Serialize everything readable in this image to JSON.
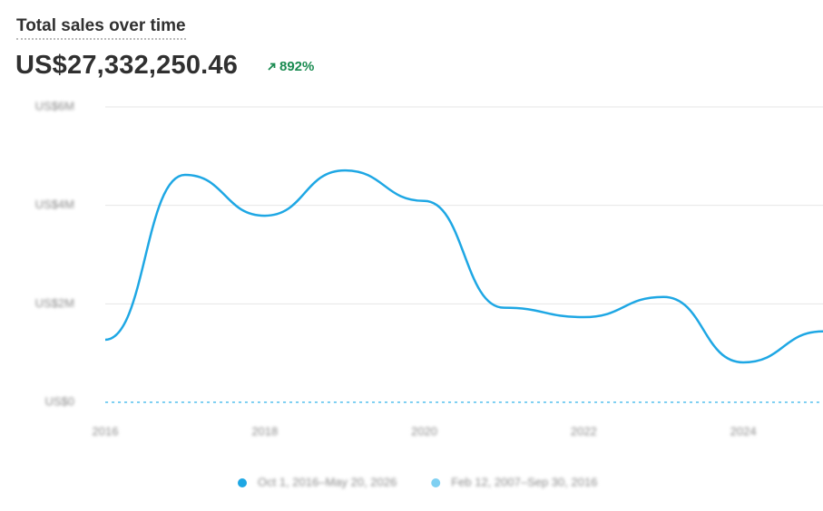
{
  "header": {
    "title": "Total sales over time",
    "total": "US$27,332,250.46",
    "change": "892%"
  },
  "chart_data": {
    "type": "line",
    "x": [
      2016,
      2017,
      2018,
      2019,
      2020,
      2021,
      2022,
      2023,
      2024,
      2025
    ],
    "series": [
      {
        "name": "Oct 1, 2016–May 20, 2026",
        "color": "#1ea7e4",
        "values": [
          1270000,
          4620000,
          3790000,
          4710000,
          4090000,
          1920000,
          1730000,
          2140000,
          810000,
          1440000
        ]
      },
      {
        "name": "Feb 12, 2007–Sep 30, 2016",
        "color": "#7fd0f2",
        "dashed": true,
        "values": [
          0,
          0,
          0,
          0,
          0,
          0,
          0,
          0,
          0,
          0
        ]
      }
    ],
    "xlim": [
      2016,
      2025
    ],
    "xticks": [
      2016,
      2018,
      2020,
      2022,
      2024
    ],
    "ylim": [
      0,
      6000000
    ],
    "yticks": [
      {
        "value": 0,
        "label": "US$0"
      },
      {
        "value": 2000000,
        "label": "US$2M"
      },
      {
        "value": 4000000,
        "label": "US$4M"
      },
      {
        "value": 6000000,
        "label": "US$6M"
      }
    ],
    "grid": true,
    "legend": "bottom"
  }
}
